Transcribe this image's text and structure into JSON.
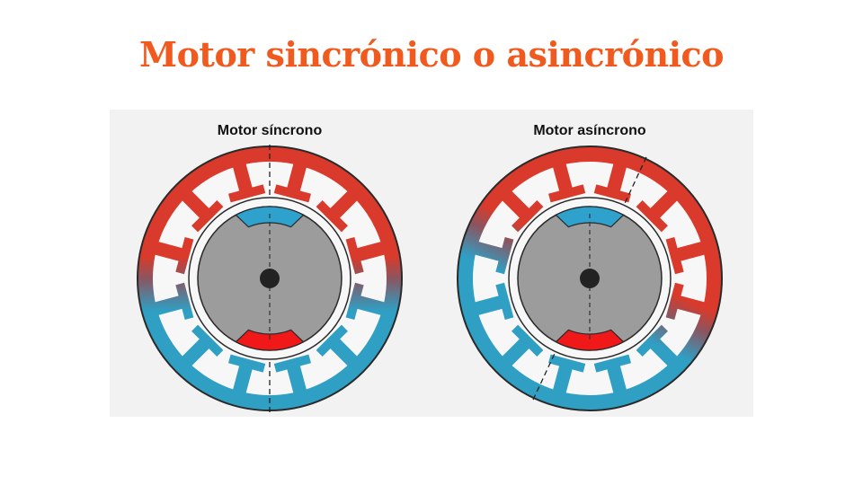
{
  "title": "Motor sincrónico o asincrónico",
  "colors": {
    "title": "#f05a1e",
    "panel_background": "#f2f2f2",
    "stator_red": "#d93a2b",
    "stator_blue": "#2f9fc4",
    "slot": "#f7f7f7",
    "rotor": "#9c9c9c",
    "pole_north": "#2ea2cc",
    "pole_south": "#f01818",
    "shaft": "#222222",
    "outline": "#2a2a2a"
  },
  "motors": [
    {
      "label": "Motor síncrono",
      "field_axis_deg": 0
    },
    {
      "label": "Motor asíncrono",
      "field_axis_deg": 25
    }
  ]
}
